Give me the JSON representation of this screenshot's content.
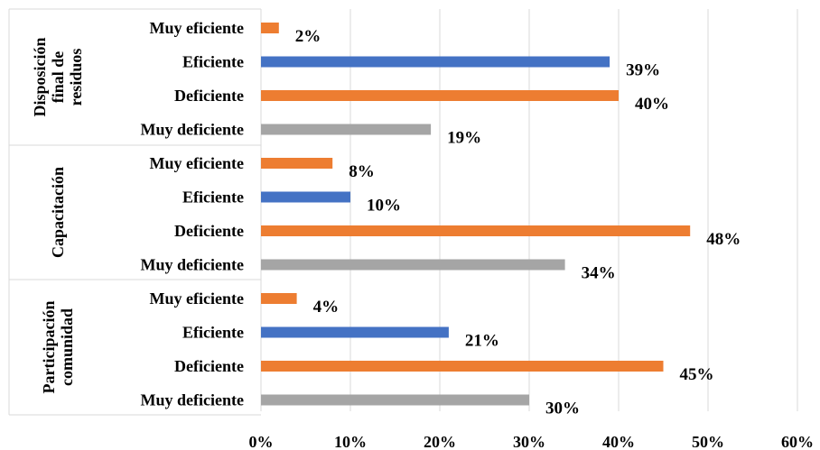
{
  "colors": {
    "muy_eficiente": "#ED7D31",
    "eficiente": "#4472C4",
    "deficiente": "#ED7D31",
    "muy_deficiente": "#A5A5A5",
    "grid": "#D9D9D9"
  },
  "chart_data": {
    "type": "bar",
    "orientation": "horizontal",
    "title": "",
    "xlabel": "",
    "ylabel": "",
    "xlim": [
      0,
      60
    ],
    "x_ticks": [
      "0%",
      "10%",
      "20%",
      "30%",
      "40%",
      "50%",
      "60%"
    ],
    "grid": true,
    "groups": [
      {
        "name_lines": [
          "Disposición",
          "final de",
          "residuos"
        ],
        "bars": [
          {
            "category": "Muy eficiente",
            "value": 2,
            "label": "2%",
            "color_key": "muy_eficiente"
          },
          {
            "category": "Eficiente",
            "value": 39,
            "label": "39%",
            "color_key": "eficiente"
          },
          {
            "category": "Deficiente",
            "value": 40,
            "label": "40%",
            "color_key": "deficiente"
          },
          {
            "category": "Muy deficiente",
            "value": 19,
            "label": "19%",
            "color_key": "muy_deficiente"
          }
        ]
      },
      {
        "name_lines": [
          "Capacitación"
        ],
        "bars": [
          {
            "category": "Muy eficiente",
            "value": 8,
            "label": "8%",
            "color_key": "muy_eficiente"
          },
          {
            "category": "Eficiente",
            "value": 10,
            "label": "10%",
            "color_key": "eficiente"
          },
          {
            "category": "Deficiente",
            "value": 48,
            "label": "48%",
            "color_key": "deficiente"
          },
          {
            "category": "Muy deficiente",
            "value": 34,
            "label": "34%",
            "color_key": "muy_deficiente"
          }
        ]
      },
      {
        "name_lines": [
          "Participación",
          "comunidad"
        ],
        "bars": [
          {
            "category": "Muy eficiente",
            "value": 4,
            "label": "4%",
            "color_key": "muy_eficiente"
          },
          {
            "category": "Eficiente",
            "value": 21,
            "label": "21%",
            "color_key": "eficiente"
          },
          {
            "category": "Deficiente",
            "value": 45,
            "label": "45%",
            "color_key": "deficiente"
          },
          {
            "category": "Muy deficiente",
            "value": 30,
            "label": "30%",
            "color_key": "muy_deficiente"
          }
        ]
      }
    ]
  }
}
